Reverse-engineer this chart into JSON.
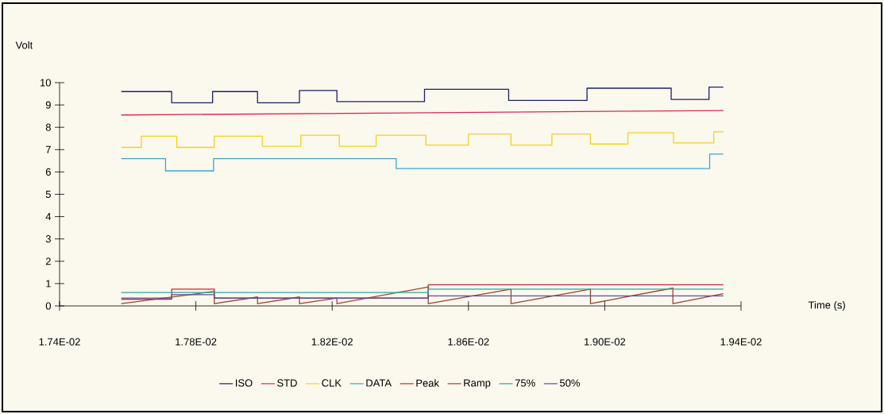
{
  "chart_data": {
    "type": "step",
    "xlabel": "Time (s)",
    "ylabel": "Volt",
    "legend": "bottom",
    "xlim": [
      0.0174,
      0.0194
    ],
    "ylim": [
      0,
      10
    ],
    "xticks": [
      {
        "value": 0.0174,
        "label": "1.74E-02"
      },
      {
        "value": 0.0178,
        "label": "1.78E-02"
      },
      {
        "value": 0.0182,
        "label": "1.82E-02"
      },
      {
        "value": 0.0186,
        "label": "1.86E-02"
      },
      {
        "value": 0.019,
        "label": "1.90E-02"
      },
      {
        "value": 0.0194,
        "label": "1.94E-02"
      }
    ],
    "yticks": [
      0,
      1,
      2,
      3,
      4,
      5,
      6,
      7,
      8,
      9,
      10
    ],
    "series": [
      {
        "name": "ISO",
        "color": "#1f1f6e",
        "x": [
          0.017581,
          0.017729,
          0.017849,
          0.017981,
          0.018104,
          0.018214,
          0.018471,
          0.018718,
          0.018948,
          0.019195,
          0.019306,
          0.019348
        ],
        "values": [
          9.6,
          9.1,
          9.6,
          9.1,
          9.65,
          9.15,
          9.7,
          9.2,
          9.75,
          9.25,
          9.8,
          9.8
        ]
      },
      {
        "name": "STD",
        "color": "#d8285a",
        "type": "line",
        "x": [
          0.017581,
          0.019348
        ],
        "values": [
          8.55,
          8.75
        ]
      },
      {
        "name": "CLK",
        "color": "#f2d21b",
        "x": [
          0.017581,
          0.01764,
          0.017744,
          0.017854,
          0.017995,
          0.018108,
          0.018221,
          0.018329,
          0.018475,
          0.0186,
          0.018725,
          0.018845,
          0.018958,
          0.019068,
          0.019202,
          0.01932,
          0.019348
        ],
        "values": [
          7.1,
          7.6,
          7.1,
          7.6,
          7.15,
          7.65,
          7.15,
          7.65,
          7.2,
          7.7,
          7.2,
          7.7,
          7.25,
          7.75,
          7.3,
          7.8,
          7.8
        ]
      },
      {
        "name": "DATA",
        "color": "#3aa6d0",
        "x": [
          0.017581,
          0.017711,
          0.017852,
          0.018388,
          0.019308,
          0.019348
        ],
        "values": [
          6.6,
          6.05,
          6.6,
          6.15,
          6.8,
          6.8
        ]
      },
      {
        "name": "Peak",
        "color": "#d2232a",
        "x": [
          0.017581,
          0.017729,
          0.017854,
          0.018482,
          0.019348
        ],
        "values": [
          0.3,
          0.75,
          0.35,
          0.95,
          0.95
        ]
      },
      {
        "name": "Ramp",
        "color": "#a0412d",
        "type": "line",
        "x": [
          0.017581,
          0.017854,
          0.017854,
          0.017981,
          0.017981,
          0.018104,
          0.018104,
          0.018214,
          0.018214,
          0.018482,
          0.018482,
          0.018725,
          0.018725,
          0.018958,
          0.018958,
          0.0192,
          0.0192,
          0.019348
        ],
        "values": [
          0.1,
          0.65,
          0.1,
          0.4,
          0.1,
          0.4,
          0.1,
          0.35,
          0.1,
          0.85,
          0.1,
          0.75,
          0.1,
          0.75,
          0.1,
          0.8,
          0.1,
          0.55
        ]
      },
      {
        "name": "75%",
        "color": "#2ba7a0",
        "x": [
          0.017581,
          0.018482,
          0.019348
        ],
        "values": [
          0.6,
          0.75,
          0.75
        ]
      },
      {
        "name": "50%",
        "color": "#5a4fa0",
        "x": [
          0.017581,
          0.017729,
          0.017854,
          0.018482,
          0.019348
        ],
        "values": [
          0.35,
          0.5,
          0.35,
          0.45,
          0.45
        ]
      }
    ]
  }
}
